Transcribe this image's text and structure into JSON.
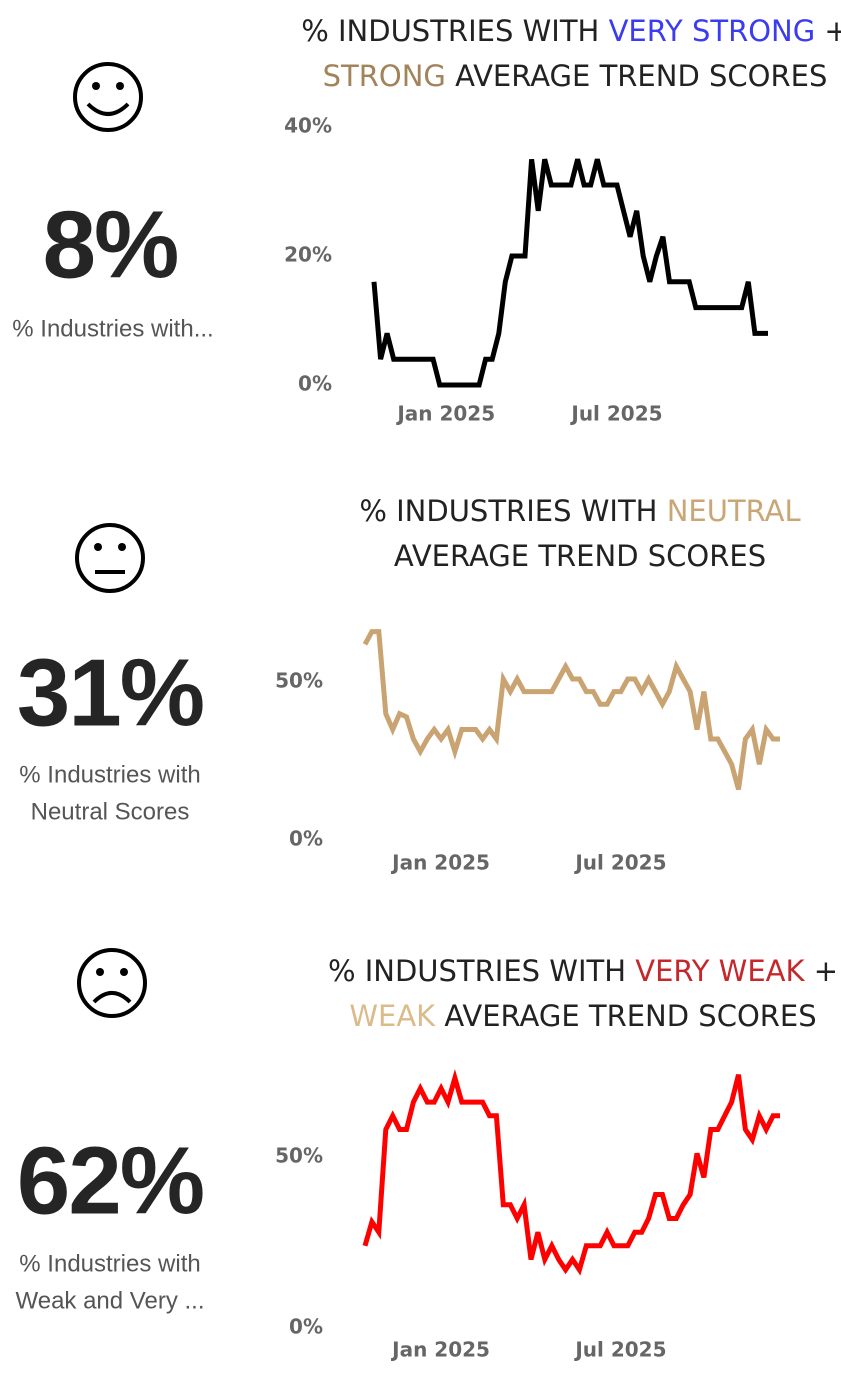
{
  "kpis": [
    {
      "value": "8%",
      "caption": [
        "% Industries with..."
      ]
    },
    {
      "value": "31%",
      "caption": [
        "% Industries with",
        "Neutral Scores"
      ]
    },
    {
      "value": "62%",
      "caption": [
        "% Industries with",
        "Weak and Very ..."
      ]
    }
  ],
  "chart_data": [
    {
      "type": "line",
      "title": [
        [
          {
            "text": "% INDUSTRIES WITH ",
            "color": "#222222"
          },
          {
            "text": "VERY STRONG",
            "color": "#3b3bef"
          },
          {
            "text": " +",
            "color": "#222222"
          }
        ],
        [
          {
            "text": "STRONG",
            "color": "#a2835a"
          },
          {
            "text": " AVERAGE TREND SCORES",
            "color": "#222222"
          }
        ]
      ],
      "categories": [
        null,
        null,
        null,
        null,
        null,
        null,
        null,
        null,
        null,
        null,
        null,
        "Jan 2025",
        null,
        null,
        null,
        null,
        null,
        null,
        null,
        null,
        null,
        null,
        null,
        null,
        null,
        null,
        null,
        null,
        null,
        null,
        null,
        null,
        null,
        null,
        null,
        null,
        null,
        "Jul 2025",
        null,
        null,
        null,
        null,
        null,
        null,
        null,
        null,
        null,
        null,
        null,
        null,
        null,
        null,
        null,
        null,
        null,
        null,
        null,
        null,
        null,
        null,
        null
      ],
      "values": [
        16,
        4,
        8,
        4,
        4,
        4,
        4,
        4,
        4,
        4,
        0,
        0,
        0,
        0,
        0,
        0,
        0,
        4,
        4,
        8,
        16,
        20,
        20,
        20,
        35,
        27,
        35,
        31,
        31,
        31,
        31,
        35,
        31,
        31,
        35,
        31,
        31,
        31,
        27,
        23,
        27,
        20,
        16,
        20,
        23,
        16,
        16,
        16,
        16,
        12,
        12,
        12,
        12,
        12,
        12,
        12,
        12,
        16,
        8,
        8,
        8
      ],
      "color": "#000000",
      "ylim": [
        0,
        40
      ],
      "yticks": [
        {
          "value": 0,
          "label": "0%"
        },
        {
          "value": 20,
          "label": "20%"
        },
        {
          "value": 40,
          "label": "40%"
        }
      ]
    },
    {
      "type": "line",
      "title": [
        [
          {
            "text": "% INDUSTRIES WITH ",
            "color": "#222222"
          },
          {
            "text": "NEUTRAL",
            "color": "#c9a676"
          }
        ],
        [
          {
            "text": "AVERAGE TREND SCORES",
            "color": "#222222"
          }
        ]
      ],
      "categories": [
        null,
        null,
        null,
        null,
        null,
        null,
        null,
        null,
        null,
        null,
        null,
        "Jan 2025",
        null,
        null,
        null,
        null,
        null,
        null,
        null,
        null,
        null,
        null,
        null,
        null,
        null,
        null,
        null,
        null,
        null,
        null,
        null,
        null,
        null,
        null,
        null,
        null,
        null,
        "Jul 2025",
        null,
        null,
        null,
        null,
        null,
        null,
        null,
        null,
        null,
        null,
        null,
        null,
        null,
        null,
        null,
        null,
        null,
        null,
        null,
        null,
        null,
        null,
        null
      ],
      "values": [
        62,
        66,
        66,
        40,
        35,
        40,
        39,
        32,
        28,
        32,
        35,
        32,
        35,
        28,
        35,
        35,
        35,
        32,
        35,
        32,
        51,
        47,
        51,
        47,
        47,
        47,
        47,
        47,
        51,
        55,
        51,
        51,
        47,
        47,
        43,
        43,
        47,
        47,
        51,
        51,
        47,
        51,
        47,
        43,
        47,
        55,
        51,
        47,
        35,
        47,
        32,
        32,
        28,
        24,
        16,
        32,
        35,
        24,
        35,
        32,
        32
      ],
      "color": "#c9a472",
      "ylim": [
        0,
        70
      ],
      "yticks": [
        {
          "value": 0,
          "label": "0%"
        },
        {
          "value": 50,
          "label": "50%"
        }
      ]
    },
    {
      "type": "line",
      "title": [
        [
          {
            "text": "% INDUSTRIES WITH ",
            "color": "#222222"
          },
          {
            "text": "VERY WEAK",
            "color": "#c4282d"
          },
          {
            "text": " +",
            "color": "#222222"
          }
        ],
        [
          {
            "text": "WEAK",
            "color": "#dcbb8a"
          },
          {
            "text": " AVERAGE TREND SCORES",
            "color": "#222222"
          }
        ]
      ],
      "categories": [
        null,
        null,
        null,
        null,
        null,
        null,
        null,
        null,
        null,
        null,
        null,
        "Jan 2025",
        null,
        null,
        null,
        null,
        null,
        null,
        null,
        null,
        null,
        null,
        null,
        null,
        null,
        null,
        null,
        null,
        null,
        null,
        null,
        null,
        null,
        null,
        null,
        null,
        null,
        "Jul 2025",
        null,
        null,
        null,
        null,
        null,
        null,
        null,
        null,
        null,
        null,
        null,
        null,
        null,
        null,
        null,
        null,
        null,
        null,
        null,
        null,
        null,
        null,
        null
      ],
      "values": [
        24,
        31,
        28,
        58,
        62,
        58,
        58,
        66,
        70,
        66,
        66,
        70,
        66,
        73,
        66,
        66,
        66,
        66,
        62,
        62,
        36,
        36,
        32,
        36,
        20,
        28,
        20,
        24,
        20,
        17,
        20,
        17,
        24,
        24,
        24,
        28,
        24,
        24,
        24,
        28,
        28,
        32,
        39,
        39,
        32,
        32,
        36,
        39,
        51,
        44,
        58,
        58,
        62,
        66,
        74,
        58,
        55,
        62,
        58,
        62,
        62
      ],
      "color": "#ff0000",
      "ylim": [
        0,
        78
      ],
      "yticks": [
        {
          "value": 0,
          "label": "0%"
        },
        {
          "value": 50,
          "label": "50%"
        }
      ]
    }
  ]
}
